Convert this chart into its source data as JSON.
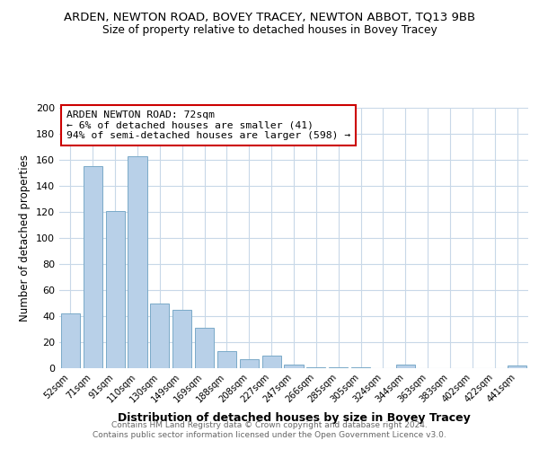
{
  "title": "ARDEN, NEWTON ROAD, BOVEY TRACEY, NEWTON ABBOT, TQ13 9BB",
  "subtitle": "Size of property relative to detached houses in Bovey Tracey",
  "xlabel": "Distribution of detached houses by size in Bovey Tracey",
  "ylabel": "Number of detached properties",
  "bar_labels": [
    "52sqm",
    "71sqm",
    "91sqm",
    "110sqm",
    "130sqm",
    "149sqm",
    "169sqm",
    "188sqm",
    "208sqm",
    "227sqm",
    "247sqm",
    "266sqm",
    "285sqm",
    "305sqm",
    "324sqm",
    "344sqm",
    "363sqm",
    "383sqm",
    "402sqm",
    "422sqm",
    "441sqm"
  ],
  "bar_values": [
    42,
    155,
    121,
    163,
    50,
    45,
    31,
    13,
    7,
    10,
    3,
    1,
    1,
    1,
    0,
    3,
    0,
    0,
    0,
    0,
    2
  ],
  "bar_color": "#b8d0e8",
  "bar_edge_color": "#7aaac8",
  "annotation_line1": "ARDEN NEWTON ROAD: 72sqm",
  "annotation_line2": "← 6% of detached houses are smaller (41)",
  "annotation_line3": "94% of semi-detached houses are larger (598) →",
  "annotation_box_edge": "#cc0000",
  "ylim": [
    0,
    200
  ],
  "yticks": [
    0,
    20,
    40,
    60,
    80,
    100,
    120,
    140,
    160,
    180,
    200
  ],
  "footer_line1": "Contains HM Land Registry data © Crown copyright and database right 2024.",
  "footer_line2": "Contains public sector information licensed under the Open Government Licence v3.0.",
  "bg_color": "#ffffff",
  "grid_color": "#c8d8e8"
}
